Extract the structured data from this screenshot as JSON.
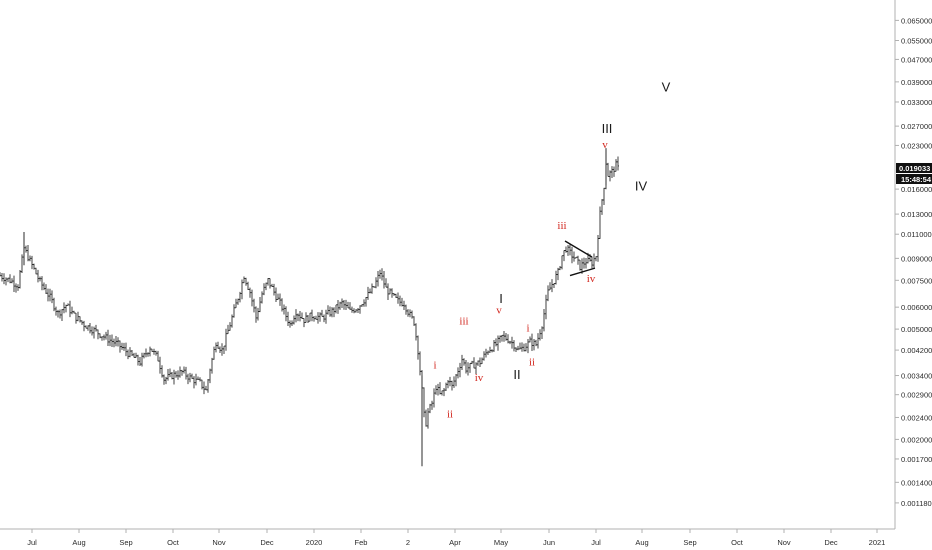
{
  "chart_data": {
    "type": "ohlc",
    "y_scale": "log",
    "ylim": [
      0.00095,
      0.077
    ],
    "y_ticks": [
      "0.065000",
      "0.055000",
      "0.047000",
      "0.039000",
      "0.033000",
      "0.027000",
      "0.023000",
      "0.019033",
      "0.016000",
      "0.013000",
      "0.011000",
      "0.009000",
      "0.007500",
      "0.006000",
      "0.005000",
      "0.004200",
      "0.003400",
      "0.002900",
      "0.002400",
      "0.002000",
      "0.001700",
      "0.001400",
      "0.001180"
    ],
    "x_ticks": [
      "Jul",
      "Aug",
      "Sep",
      "Oct",
      "Nov",
      "Dec",
      "2020",
      "Feb",
      "2",
      "Apr",
      "May",
      "Jun",
      "Jul",
      "Aug",
      "Sep",
      "Oct",
      "Nov",
      "Dec",
      "2021"
    ],
    "last_price": "0.019033",
    "countdown": "15:48:54",
    "close_series": [
      [
        0,
        0.0078
      ],
      [
        10,
        0.0075
      ],
      [
        18,
        0.0072
      ],
      [
        24,
        0.0098
      ],
      [
        30,
        0.0088
      ],
      [
        40,
        0.0074
      ],
      [
        50,
        0.0065
      ],
      [
        58,
        0.0057
      ],
      [
        66,
        0.0061
      ],
      [
        74,
        0.0056
      ],
      [
        84,
        0.0052
      ],
      [
        96,
        0.0049
      ],
      [
        108,
        0.0046
      ],
      [
        118,
        0.0044
      ],
      [
        128,
        0.0041
      ],
      [
        140,
        0.0038
      ],
      [
        150,
        0.0043
      ],
      [
        158,
        0.0039
      ],
      [
        164,
        0.0033
      ],
      [
        172,
        0.0034
      ],
      [
        182,
        0.0035
      ],
      [
        192,
        0.0033
      ],
      [
        200,
        0.0032
      ],
      [
        206,
        0.003
      ],
      [
        210,
        0.0036
      ],
      [
        216,
        0.0045
      ],
      [
        222,
        0.0042
      ],
      [
        230,
        0.0052
      ],
      [
        238,
        0.0065
      ],
      [
        244,
        0.0078
      ],
      [
        250,
        0.0068
      ],
      [
        256,
        0.0055
      ],
      [
        262,
        0.0067
      ],
      [
        268,
        0.0075
      ],
      [
        274,
        0.0068
      ],
      [
        282,
        0.006
      ],
      [
        290,
        0.0052
      ],
      [
        296,
        0.0058
      ],
      [
        304,
        0.0054
      ],
      [
        312,
        0.0056
      ],
      [
        322,
        0.0055
      ],
      [
        332,
        0.0058
      ],
      [
        342,
        0.0062
      ],
      [
        350,
        0.0058
      ],
      [
        358,
        0.006
      ],
      [
        366,
        0.0065
      ],
      [
        374,
        0.0071
      ],
      [
        380,
        0.008
      ],
      [
        386,
        0.007
      ],
      [
        392,
        0.0066
      ],
      [
        398,
        0.0063
      ],
      [
        404,
        0.0062
      ],
      [
        410,
        0.0056
      ],
      [
        414,
        0.0053
      ],
      [
        418,
        0.0042
      ],
      [
        422,
        0.003
      ],
      [
        425,
        0.0022
      ],
      [
        428,
        0.0025
      ],
      [
        432,
        0.0027
      ],
      [
        436,
        0.0031
      ],
      [
        440,
        0.0029
      ],
      [
        444,
        0.003
      ],
      [
        448,
        0.0033
      ],
      [
        452,
        0.0031
      ],
      [
        456,
        0.0034
      ],
      [
        462,
        0.0039
      ],
      [
        466,
        0.0036
      ],
      [
        472,
        0.0037
      ],
      [
        480,
        0.0038
      ],
      [
        488,
        0.0042
      ],
      [
        496,
        0.0044
      ],
      [
        502,
        0.0047
      ],
      [
        508,
        0.0046
      ],
      [
        514,
        0.0044
      ],
      [
        518,
        0.0042
      ],
      [
        524,
        0.0043
      ],
      [
        530,
        0.0045
      ],
      [
        536,
        0.0044
      ],
      [
        542,
        0.0052
      ],
      [
        548,
        0.0068
      ],
      [
        554,
        0.0075
      ],
      [
        558,
        0.008
      ],
      [
        562,
        0.0092
      ],
      [
        566,
        0.0098
      ],
      [
        570,
        0.0094
      ],
      [
        576,
        0.0089
      ],
      [
        580,
        0.0084
      ],
      [
        586,
        0.0088
      ],
      [
        592,
        0.0087
      ],
      [
        596,
        0.0092
      ],
      [
        600,
        0.013
      ],
      [
        604,
        0.0165
      ],
      [
        606,
        0.02
      ],
      [
        608,
        0.018
      ],
      [
        612,
        0.0185
      ],
      [
        616,
        0.0195
      ],
      [
        618,
        0.019
      ]
    ],
    "wave_labels": [
      {
        "text": "i",
        "color": "red",
        "x": 435,
        "y": 0.0036
      },
      {
        "text": "ii",
        "color": "red",
        "x": 450,
        "y": 0.0024
      },
      {
        "text": "iii",
        "color": "red",
        "x": 464,
        "y": 0.0052
      },
      {
        "text": "iv",
        "color": "red",
        "x": 479,
        "y": 0.00325
      },
      {
        "text": "v",
        "color": "red",
        "x": 499,
        "y": 0.0057
      },
      {
        "text": "I",
        "color": "black",
        "x": 501,
        "y": 0.0062
      },
      {
        "text": "II",
        "color": "black",
        "x": 517,
        "y": 0.0033
      },
      {
        "text": "i",
        "color": "red",
        "x": 528,
        "y": 0.0049
      },
      {
        "text": "ii",
        "color": "red",
        "x": 532,
        "y": 0.0037
      },
      {
        "text": "iii",
        "color": "red",
        "x": 562,
        "y": 0.0115
      },
      {
        "text": "iv",
        "color": "red",
        "x": 591,
        "y": 0.0074
      },
      {
        "text": "v",
        "color": "red",
        "x": 605,
        "y": 0.0225
      },
      {
        "text": "III",
        "color": "black",
        "x": 607,
        "y": 0.0255
      },
      {
        "text": "IV",
        "color": "black",
        "x": 641,
        "y": 0.0158
      },
      {
        "text": "V",
        "color": "black",
        "x": 666,
        "y": 0.036
      }
    ],
    "triangle": [
      [
        565,
        0.0104
      ],
      [
        592,
        0.0091
      ],
      [
        570,
        0.0078
      ],
      [
        595,
        0.0083
      ]
    ]
  },
  "colors": {
    "bars": "#2b2b2b",
    "wave_red": "#d2261e",
    "wave_black": "#1a1a1a",
    "tag_bg": "#111111",
    "axis_line": "#b0b0b0"
  }
}
